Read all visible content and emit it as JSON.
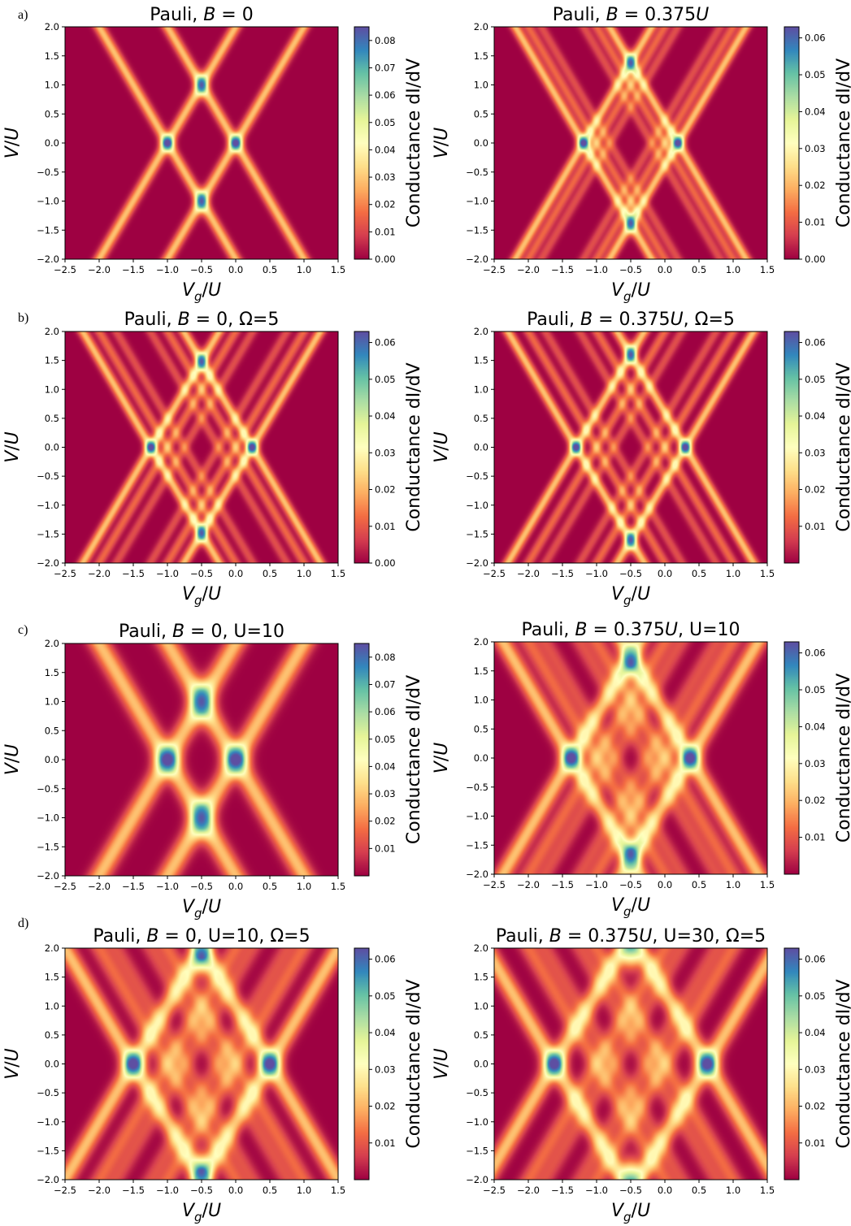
{
  "rows": [
    "a)",
    "b)",
    "c)",
    "d)"
  ],
  "colorbar_label": "Conductance dI/dV",
  "colormap": [
    "#9e0142",
    "#d53e4f",
    "#f46d43",
    "#fdae61",
    "#fee08b",
    "#ffffbf",
    "#e6f598",
    "#abdda4",
    "#66c2a5",
    "#3288bd",
    "#5e4fa2"
  ],
  "chart_data": [
    {
      "type": "heatmap",
      "title": "Pauli, B = 0",
      "title_parts": [
        "Pauli, ",
        "B",
        " = 0"
      ],
      "xlabel": "Vg/U",
      "ylabel": "V/U",
      "xlim": [
        -2.5,
        1.5
      ],
      "ylim": [
        -2.0,
        2.0
      ],
      "xticks": [
        -2.5,
        -2.0,
        -1.5,
        -1.0,
        -0.5,
        0.0,
        0.5,
        1.0,
        1.5
      ],
      "yticks": [
        -2.0,
        -1.5,
        -1.0,
        -0.5,
        0.0,
        0.5,
        1.0,
        1.5,
        2.0
      ],
      "colorbar": {
        "min": 0.0,
        "max": 0.085,
        "ticks": [
          0.0,
          0.01,
          0.02,
          0.03,
          0.04,
          0.05,
          0.06,
          0.07,
          0.08
        ]
      },
      "features": {
        "center": -0.5,
        "main_nodes": [
          -1.0,
          0.0
        ],
        "excited_nodes": [],
        "width": 0.055,
        "strong_peaks": [
          [
            -0.5,
            1.0
          ],
          [
            -0.5,
            -1.0
          ]
        ]
      }
    },
    {
      "type": "heatmap",
      "title": "Pauli, B = 0.375U",
      "title_parts": [
        "Pauli, ",
        "B",
        " = 0.375",
        "U"
      ],
      "xlabel": "Vg/U",
      "ylabel": "V/U",
      "xlim": [
        -2.5,
        1.5
      ],
      "ylim": [
        -2.0,
        2.0
      ],
      "xticks": [
        -2.5,
        -2.0,
        -1.5,
        -1.0,
        -0.5,
        0.0,
        0.5,
        1.0,
        1.5
      ],
      "yticks": [
        -2.0,
        -1.5,
        -1.0,
        -0.5,
        0.0,
        0.5,
        1.0,
        1.5,
        2.0
      ],
      "colorbar": {
        "min": 0.0,
        "max": 0.063,
        "ticks": [
          0.0,
          0.01,
          0.02,
          0.03,
          0.04,
          0.05,
          0.06
        ]
      },
      "features": {
        "center": -0.5,
        "main_nodes": [
          -1.19,
          0.19
        ],
        "excited_nodes": [
          -1.0,
          0.0,
          -0.81,
          -0.19
        ],
        "width": 0.05,
        "strong_peaks": [
          [
            -0.5,
            1.38
          ],
          [
            -0.5,
            -1.38
          ]
        ]
      }
    },
    {
      "type": "heatmap",
      "title": "Pauli, B = 0, Ω=5",
      "title_parts": [
        "Pauli, ",
        "B",
        " = 0, Ω=5"
      ],
      "xlabel": "Vg/U",
      "ylabel": "V/U",
      "xlim": [
        -2.5,
        1.5
      ],
      "ylim": [
        -2.0,
        2.0
      ],
      "xticks": [
        -2.5,
        -2.0,
        -1.5,
        -1.0,
        -0.5,
        0.0,
        0.5,
        1.0,
        1.5
      ],
      "yticks": [
        -2.0,
        -1.5,
        -1.0,
        -0.5,
        0.0,
        0.5,
        1.0,
        1.5,
        2.0
      ],
      "colorbar": {
        "min": 0.0,
        "max": 0.063,
        "ticks": [
          0.0,
          0.01,
          0.02,
          0.03,
          0.04,
          0.05,
          0.06
        ]
      },
      "features": {
        "center": -0.5,
        "main_nodes": [
          -1.24,
          0.24
        ],
        "excited_nodes": [
          -1.0,
          0.0,
          -0.75,
          -0.25
        ],
        "width": 0.05,
        "strong_peaks": [
          [
            -0.5,
            1.48
          ],
          [
            -0.5,
            -1.48
          ]
        ]
      }
    },
    {
      "type": "heatmap",
      "title": "Pauli, B = 0.375U, Ω=5",
      "title_parts": [
        "Pauli, ",
        "B",
        " = 0.375",
        "U",
        ", Ω=5"
      ],
      "xlabel": "Vg/U",
      "ylabel": "V/U",
      "xlim": [
        -2.5,
        1.5
      ],
      "ylim": [
        -2.0,
        2.0
      ],
      "xticks": [
        -2.5,
        -2.0,
        -1.5,
        -1.0,
        -0.5,
        0.0,
        0.5,
        1.0,
        1.5
      ],
      "yticks": [
        -2.0,
        -1.5,
        -1.0,
        -0.5,
        0.0,
        0.5,
        1.0,
        1.5,
        2.0
      ],
      "colorbar": {
        "min": 0.0,
        "max": 0.063,
        "ticks": [
          0.01,
          0.02,
          0.03,
          0.04,
          0.05,
          0.06
        ]
      },
      "features": {
        "center": -0.5,
        "main_nodes": [
          -1.3,
          0.3
        ],
        "excited_nodes": [
          -1.0,
          0.0,
          -0.75,
          -0.25
        ],
        "width": 0.05,
        "strong_peaks": [
          [
            -0.5,
            1.6
          ],
          [
            -0.5,
            -1.6
          ]
        ]
      }
    },
    {
      "type": "heatmap",
      "title": "Pauli, B = 0, U=10",
      "title_parts": [
        "Pauli, ",
        "B",
        " = 0, U=10"
      ],
      "xlabel": "Vg/U",
      "ylabel": "V/U",
      "xlim": [
        -2.5,
        1.5
      ],
      "ylim": [
        -2.0,
        2.0
      ],
      "xticks": [
        -2.5,
        -2.0,
        -1.5,
        -1.0,
        -0.5,
        0.0,
        0.5,
        1.0,
        1.5
      ],
      "yticks": [
        -2.0,
        -1.5,
        -1.0,
        -0.5,
        0.0,
        0.5,
        1.0,
        1.5,
        2.0
      ],
      "colorbar": {
        "min": 0.0,
        "max": 0.085,
        "ticks": [
          0.01,
          0.02,
          0.03,
          0.04,
          0.05,
          0.06,
          0.07,
          0.08
        ]
      },
      "features": {
        "center": -0.5,
        "main_nodes": [
          -1.0,
          0.0
        ],
        "excited_nodes": [],
        "width": 0.1,
        "strong_peaks": [
          [
            -0.5,
            1.0
          ],
          [
            -0.5,
            -1.0
          ]
        ]
      }
    },
    {
      "type": "heatmap",
      "title": "Pauli, B = 0.375U, U=10",
      "title_parts": [
        "Pauli, ",
        "B",
        " = 0.375",
        "U",
        ", U=10"
      ],
      "xlabel": "Vg/U",
      "ylabel": "V/U",
      "xlim": [
        -2.5,
        1.5
      ],
      "ylim": [
        -2.0,
        2.0
      ],
      "xticks": [
        -2.5,
        -2.0,
        -1.5,
        -1.0,
        -0.5,
        0.0,
        0.5,
        1.0,
        1.5
      ],
      "yticks": [
        -2.0,
        -1.5,
        -1.0,
        -0.5,
        0.0,
        0.5,
        1.0,
        1.5,
        2.0
      ],
      "colorbar": {
        "min": 0.0,
        "max": 0.063,
        "ticks": [
          0.01,
          0.02,
          0.03,
          0.04,
          0.05,
          0.06
        ]
      },
      "features": {
        "center": -0.5,
        "main_nodes": [
          -1.37,
          0.37
        ],
        "excited_nodes": [
          -1.0,
          0.0,
          -0.75,
          -0.25
        ],
        "width": 0.085,
        "strong_peaks": [
          [
            -0.5,
            1.65
          ],
          [
            -0.5,
            -1.65
          ]
        ]
      }
    },
    {
      "type": "heatmap",
      "title": "Pauli, B = 0, U=10, Ω=5",
      "title_parts": [
        "Pauli, ",
        "B",
        " = 0, U=10, Ω=5"
      ],
      "xlabel": "Vg/U",
      "ylabel": "V/U",
      "xlim": [
        -2.5,
        1.5
      ],
      "ylim": [
        -2.0,
        2.0
      ],
      "xticks": [
        -2.5,
        -2.0,
        -1.5,
        -1.0,
        -0.5,
        0.0,
        0.5,
        1.0,
        1.5
      ],
      "yticks": [
        -2.0,
        -1.5,
        -1.0,
        -0.5,
        0.0,
        0.5,
        1.0,
        1.5,
        2.0
      ],
      "colorbar": {
        "min": 0.0,
        "max": 0.063,
        "ticks": [
          0.01,
          0.02,
          0.03,
          0.04,
          0.05,
          0.06
        ]
      },
      "features": {
        "center": -0.5,
        "main_nodes": [
          -1.5,
          0.5
        ],
        "excited_nodes": [
          -1.0,
          0.0,
          -0.75,
          -0.25
        ],
        "width": 0.09,
        "strong_peaks": [
          [
            -0.5,
            1.85
          ],
          [
            -0.5,
            -1.85
          ]
        ]
      }
    },
    {
      "type": "heatmap",
      "title": "Pauli, B = 0.375U, U=30, Ω=5",
      "title_parts": [
        "Pauli, ",
        "B",
        " = 0.375",
        "U",
        ", U=30, Ω=5"
      ],
      "xlabel": "Vg/U",
      "ylabel": "V/U",
      "xlim": [
        -2.5,
        1.5
      ],
      "ylim": [
        -2.0,
        2.0
      ],
      "xticks": [
        -2.5,
        -2.0,
        -1.5,
        -1.0,
        -0.5,
        0.0,
        0.5,
        1.0,
        1.5
      ],
      "yticks": [
        -2.0,
        -1.5,
        -1.0,
        -0.5,
        0.0,
        0.5,
        1.0,
        1.5,
        2.0
      ],
      "colorbar": {
        "min": 0.0,
        "max": 0.063,
        "ticks": [
          0.01,
          0.02,
          0.03,
          0.04,
          0.05,
          0.06
        ]
      },
      "features": {
        "center": -0.5,
        "main_nodes": [
          -1.62,
          0.62
        ],
        "excited_nodes": [
          -1.0,
          0.0,
          -0.75,
          -0.25
        ],
        "width": 0.09,
        "strong_peaks": [
          [
            -0.5,
            1.95
          ],
          [
            -0.5,
            -1.95
          ]
        ]
      }
    }
  ]
}
